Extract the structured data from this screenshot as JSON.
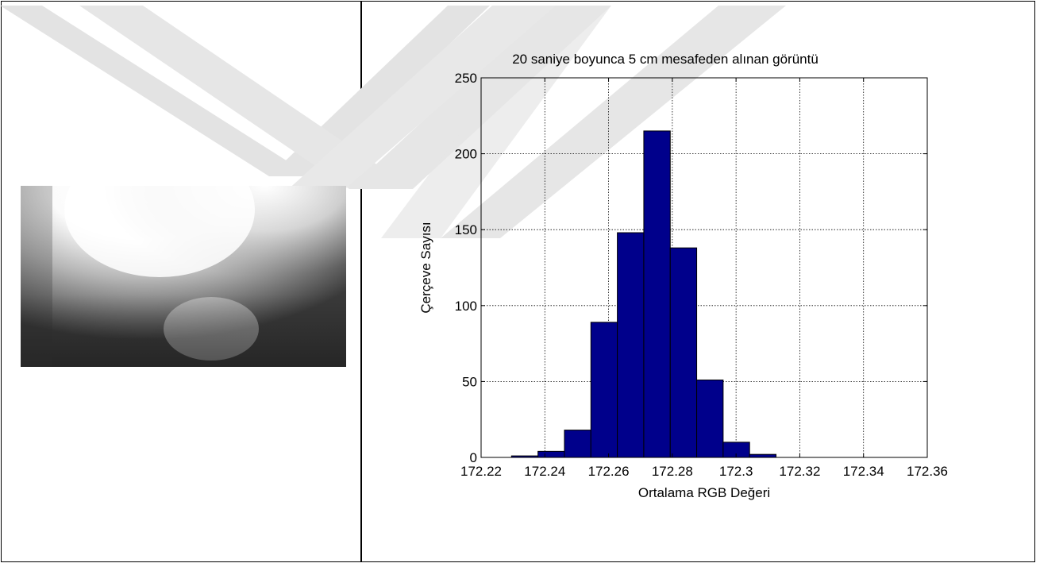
{
  "chart_data": {
    "type": "bar",
    "subtype": "histogram",
    "title": "20 saniye  boyunca 5 cm mesafeden alınan görüntü",
    "xlabel": "Ortalama RGB Değeri",
    "ylabel": "Çerçeve Sayısı",
    "xlim": [
      172.22,
      172.36
    ],
    "ylim": [
      0,
      250
    ],
    "xticks": [
      "172.22",
      "172.24",
      "172.26",
      "172.28",
      "172.3",
      "172.32",
      "172.34",
      "172.36"
    ],
    "yticks": [
      "0",
      "50",
      "100",
      "150",
      "200",
      "250"
    ],
    "grid": true,
    "bin_width": 0.0083,
    "bins": [
      {
        "center": 172.2337,
        "value": 1
      },
      {
        "center": 172.242,
        "value": 4
      },
      {
        "center": 172.2503,
        "value": 18
      },
      {
        "center": 172.2586,
        "value": 89
      },
      {
        "center": 172.2669,
        "value": 148
      },
      {
        "center": 172.2752,
        "value": 215
      },
      {
        "center": 172.2835,
        "value": 138
      },
      {
        "center": 172.2918,
        "value": 51
      },
      {
        "center": 172.3001,
        "value": 10
      },
      {
        "center": 172.3084,
        "value": 2
      }
    ],
    "bar_color": "#00008B"
  },
  "colors": {
    "watermark": "#e3e3e3",
    "border": "#000000"
  },
  "images": {
    "left_photo": "grayscale-light-glow-image"
  }
}
